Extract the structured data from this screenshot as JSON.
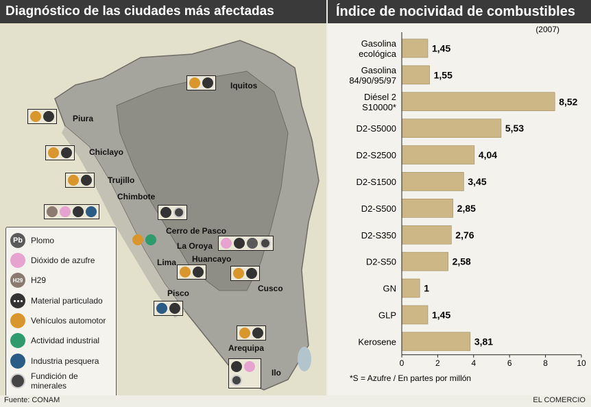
{
  "header": {
    "left_title": "Diagnóstico de las ciudades más afectadas",
    "right_title": "Índice de nocividad de combustibles"
  },
  "legend": [
    {
      "icon": "lead-icon",
      "label": "Plomo",
      "glyph": "Pb"
    },
    {
      "icon": "sulfur-dioxide-icon",
      "label": "Dióxido de azufre",
      "glyph": ""
    },
    {
      "icon": "h2s-icon",
      "label": "H29",
      "glyph": "H29"
    },
    {
      "icon": "particulate-icon",
      "label": "Material particulado",
      "glyph": ""
    },
    {
      "icon": "vehicle-icon",
      "label": "Vehículos automotor",
      "glyph": ""
    },
    {
      "icon": "industry-icon",
      "label": "Actividad industrial",
      "glyph": ""
    },
    {
      "icon": "fishing-icon",
      "label": "Industria pesquera",
      "glyph": ""
    },
    {
      "icon": "mineral-smelting-icon",
      "label": "Fundición de minerales",
      "glyph": ""
    }
  ],
  "cities": [
    {
      "name": "Iquitos"
    },
    {
      "name": "Piura"
    },
    {
      "name": "Chiclayo"
    },
    {
      "name": "Trujillo"
    },
    {
      "name": "Chimbote"
    },
    {
      "name": "Cerro de Pasco"
    },
    {
      "name": "La Oroya"
    },
    {
      "name": "Lima"
    },
    {
      "name": "Huancayo"
    },
    {
      "name": "Cusco"
    },
    {
      "name": "Pisco"
    },
    {
      "name": "Arequipa"
    },
    {
      "name": "Ilo"
    }
  ],
  "chart_data": {
    "type": "bar",
    "orientation": "horizontal",
    "subtitle": "(2007)",
    "categories": [
      "Gasolina ecológica",
      "Gasolina 84/90/95/97",
      "Diésel 2 S10000*",
      "D2-S5000",
      "D2-S2500",
      "D2-S1500",
      "D2-S500",
      "D2-S350",
      "D2-S50",
      "GN",
      "GLP",
      "Kerosene"
    ],
    "category_lines": [
      [
        "Gasolina",
        "ecológica"
      ],
      [
        "Gasolina",
        "84/90/95/97"
      ],
      [
        "Diésel 2",
        "S10000*"
      ],
      [
        "D2-S5000"
      ],
      [
        "D2-S2500"
      ],
      [
        "D2-S1500"
      ],
      [
        "D2-S500"
      ],
      [
        "D2-S350"
      ],
      [
        "D2-S50"
      ],
      [
        "GN"
      ],
      [
        "GLP"
      ],
      [
        "Kerosene"
      ]
    ],
    "values": [
      1.45,
      1.55,
      8.52,
      5.53,
      4.04,
      3.45,
      2.85,
      2.76,
      2.58,
      1,
      1.45,
      3.81
    ],
    "value_labels": [
      "1,45",
      "1,55",
      "8,52",
      "5,53",
      "4,04",
      "3,45",
      "2,85",
      "2,76",
      "2,58",
      "1",
      "1,45",
      "3,81"
    ],
    "xlim": [
      0,
      10
    ],
    "xticks": [
      0,
      2,
      4,
      6,
      8,
      10
    ],
    "note": "*S = Azufre  / En partes por millón",
    "bar_color": "#cdb787"
  },
  "footer": {
    "source": "Fuente: CONAM",
    "publisher": "EL COMERCIO"
  }
}
